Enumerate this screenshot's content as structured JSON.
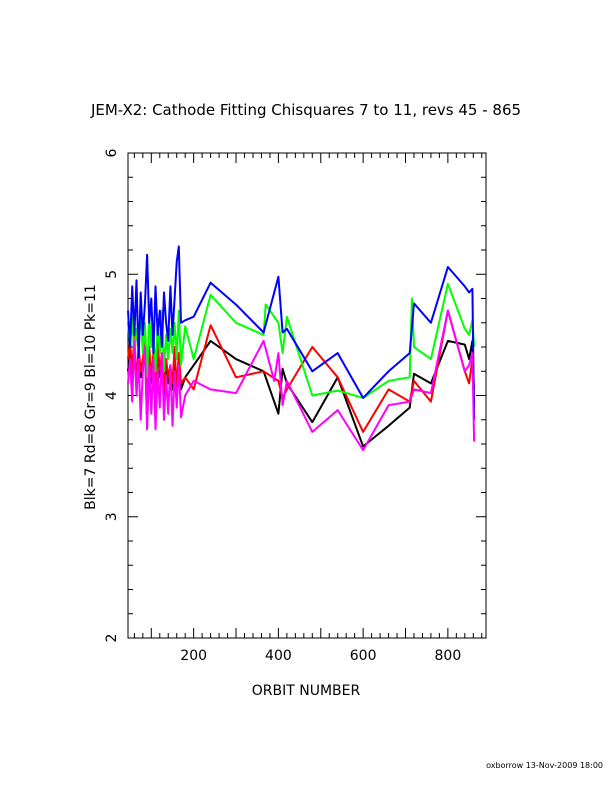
{
  "chart_data": {
    "type": "line",
    "title": "JEM-X2: Cathode Fitting Chisquares 7 to 11, revs 45 - 865",
    "xlabel": "ORBIT NUMBER",
    "ylabel": "Blk=7 Rd=8 Gr=9 Bl=10 Pk=11",
    "xlim": [
      45,
      890
    ],
    "ylim": [
      2,
      6
    ],
    "xticks": [
      200,
      400,
      600,
      800
    ],
    "yticks": [
      2,
      3,
      4,
      5,
      6
    ],
    "grid": false,
    "footer": "oxborrow 13-Nov-2009 18:00",
    "series": [
      {
        "name": "Blk=7",
        "color": "#000000",
        "x": [
          45,
          50,
          55,
          60,
          65,
          70,
          75,
          80,
          85,
          90,
          95,
          100,
          105,
          110,
          115,
          120,
          125,
          130,
          135,
          140,
          145,
          150,
          155,
          160,
          165,
          170,
          180,
          200,
          240,
          300,
          365,
          400,
          410,
          420,
          480,
          540,
          600,
          660,
          710,
          720,
          760,
          800,
          840,
          850,
          858,
          862
        ],
        "y": [
          4.2,
          4.35,
          4.1,
          4.4,
          4.05,
          4.3,
          4.15,
          4.2,
          4.4,
          3.8,
          4.35,
          4.1,
          4.25,
          3.9,
          4.45,
          4.15,
          4.3,
          4.0,
          4.3,
          4.1,
          4.2,
          4.05,
          4.35,
          4.0,
          4.3,
          4.05,
          4.15,
          4.25,
          4.45,
          4.3,
          4.2,
          3.85,
          4.22,
          4.1,
          3.78,
          4.15,
          3.58,
          3.75,
          3.9,
          4.18,
          4.1,
          4.45,
          4.42,
          4.3,
          4.45,
          3.9
        ]
      },
      {
        "name": "Rd=8",
        "color": "#ff0000",
        "x": [
          45,
          50,
          55,
          60,
          65,
          70,
          75,
          80,
          85,
          90,
          95,
          100,
          105,
          110,
          115,
          120,
          125,
          130,
          135,
          140,
          145,
          150,
          155,
          160,
          165,
          170,
          180,
          200,
          240,
          300,
          365,
          400,
          410,
          420,
          480,
          540,
          600,
          660,
          710,
          720,
          760,
          800,
          840,
          850,
          858,
          862
        ],
        "y": [
          4.3,
          4.45,
          4.2,
          4.5,
          4.1,
          4.4,
          4.2,
          4.3,
          4.45,
          3.95,
          4.4,
          4.15,
          4.35,
          4.0,
          4.4,
          4.2,
          4.35,
          4.05,
          4.3,
          4.15,
          4.25,
          4.1,
          4.4,
          4.05,
          4.35,
          4.1,
          4.15,
          4.05,
          4.58,
          4.15,
          4.2,
          4.12,
          3.98,
          4.05,
          4.4,
          4.15,
          3.7,
          4.05,
          3.95,
          4.12,
          3.95,
          4.7,
          4.2,
          4.1,
          4.3,
          4.05
        ]
      },
      {
        "name": "Gr=9",
        "color": "#00ff00",
        "x": [
          45,
          50,
          55,
          60,
          65,
          70,
          75,
          80,
          85,
          90,
          95,
          100,
          105,
          110,
          115,
          120,
          125,
          130,
          135,
          140,
          145,
          150,
          155,
          160,
          165,
          170,
          180,
          200,
          240,
          300,
          365,
          370,
          400,
          410,
          420,
          480,
          540,
          600,
          660,
          710,
          715,
          720,
          760,
          800,
          840,
          850,
          858,
          862
        ],
        "y": [
          4.6,
          4.4,
          4.65,
          4.3,
          4.55,
          4.4,
          4.7,
          4.35,
          4.6,
          4.15,
          4.65,
          4.4,
          4.5,
          4.2,
          4.6,
          4.35,
          4.7,
          4.2,
          4.5,
          4.3,
          4.55,
          4.35,
          4.6,
          4.3,
          4.7,
          4.25,
          4.57,
          4.3,
          4.83,
          4.6,
          4.5,
          4.75,
          4.6,
          4.35,
          4.65,
          4.0,
          4.04,
          3.98,
          4.12,
          4.15,
          4.8,
          4.4,
          4.3,
          4.92,
          4.55,
          4.5,
          4.62,
          4.4
        ]
      },
      {
        "name": "Bl=10",
        "color": "#0000ff",
        "x": [
          45,
          50,
          55,
          60,
          65,
          70,
          75,
          80,
          85,
          90,
          95,
          100,
          105,
          110,
          115,
          120,
          125,
          130,
          135,
          140,
          145,
          150,
          155,
          160,
          165,
          170,
          180,
          200,
          240,
          300,
          365,
          400,
          410,
          420,
          480,
          540,
          600,
          660,
          710,
          720,
          760,
          800,
          840,
          850,
          858,
          862
        ],
        "y": [
          4.7,
          4.4,
          4.9,
          4.5,
          4.95,
          4.3,
          4.85,
          4.5,
          4.75,
          5.16,
          4.6,
          4.8,
          4.35,
          4.9,
          4.5,
          4.7,
          4.4,
          4.85,
          4.6,
          4.45,
          4.9,
          4.5,
          4.8,
          5.1,
          5.23,
          4.6,
          4.62,
          4.65,
          4.93,
          4.75,
          4.52,
          4.98,
          4.52,
          4.55,
          4.2,
          4.35,
          3.98,
          4.2,
          4.35,
          4.76,
          4.6,
          5.06,
          4.9,
          4.85,
          4.88,
          3.8
        ]
      },
      {
        "name": "Pk=11",
        "color": "#ff00ff",
        "x": [
          45,
          50,
          55,
          60,
          65,
          70,
          75,
          80,
          85,
          90,
          95,
          100,
          105,
          110,
          115,
          120,
          125,
          130,
          135,
          140,
          145,
          150,
          155,
          160,
          165,
          170,
          180,
          200,
          240,
          300,
          365,
          390,
          400,
          410,
          420,
          480,
          540,
          600,
          660,
          710,
          720,
          760,
          800,
          840,
          850,
          858,
          862
        ],
        "y": [
          4.1,
          4.3,
          3.95,
          4.45,
          4.0,
          4.3,
          3.8,
          4.2,
          4.4,
          3.72,
          4.25,
          3.85,
          4.3,
          3.72,
          4.2,
          3.9,
          4.35,
          3.8,
          4.15,
          3.85,
          4.25,
          3.75,
          4.2,
          3.9,
          4.25,
          3.82,
          4.0,
          4.12,
          4.05,
          4.02,
          4.45,
          4.12,
          4.35,
          3.92,
          4.12,
          3.7,
          3.88,
          3.55,
          3.92,
          3.95,
          4.05,
          4.02,
          4.7,
          4.2,
          4.25,
          4.35,
          3.62
        ]
      }
    ]
  }
}
